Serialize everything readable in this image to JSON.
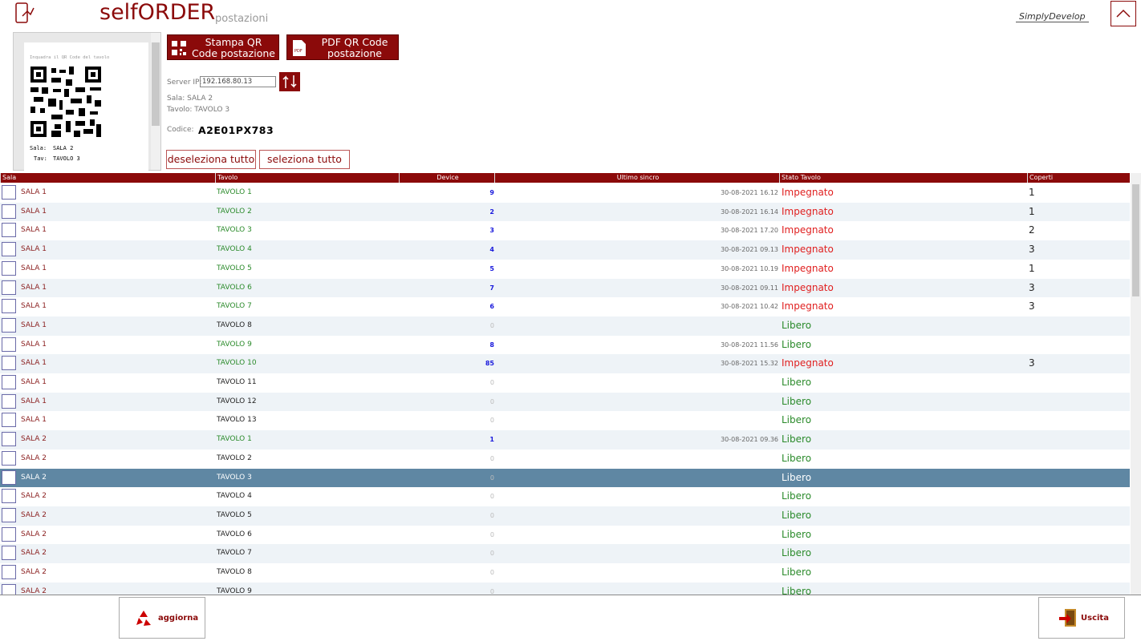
{
  "header": {
    "title": "selfORDER",
    "subtitle": "postazioni",
    "logo": "SimplyDevelop"
  },
  "qr_preview": {
    "hint": "Inquadra il QR Code del tavolo",
    "sala_label": "Sala:",
    "sala": "SALA 2",
    "tav_label": "Tav:",
    "tav": "TAVOLO 3"
  },
  "actions": {
    "print_qr": "Stampa QR Code postazione",
    "pdf_qr": "PDF QR Code postazione",
    "server_ip_label": "Server IP:",
    "server_ip": "192.168.80.13",
    "sala_info": "Sala: SALA 2",
    "tavolo_info": "Tavolo: TAVOLO 3",
    "codice_label": "Codice:",
    "codice": "A2E01PX783",
    "deselect_all": "deseleziona tutto",
    "select_all": "seleziona tutto"
  },
  "table": {
    "columns": [
      "Sala",
      "Tavolo",
      "Device",
      "Ultimo sincro",
      "Stato Tavolo",
      "Coperti"
    ],
    "selected_row": 15,
    "rows": [
      [
        "SALA 1",
        "TAVOLO 1",
        9,
        "30-08-2021 16.12",
        "Impegnato",
        1
      ],
      [
        "SALA 1",
        "TAVOLO 2",
        2,
        "30-08-2021 16.14",
        "Impegnato",
        1
      ],
      [
        "SALA 1",
        "TAVOLO 3",
        3,
        "30-08-2021 17.20",
        "Impegnato",
        2
      ],
      [
        "SALA 1",
        "TAVOLO 4",
        4,
        "30-08-2021 09.13",
        "Impegnato",
        3
      ],
      [
        "SALA 1",
        "TAVOLO 5",
        5,
        "30-08-2021 10.19",
        "Impegnato",
        1
      ],
      [
        "SALA 1",
        "TAVOLO 6",
        7,
        "30-08-2021 09.11",
        "Impegnato",
        3
      ],
      [
        "SALA 1",
        "TAVOLO 7",
        6,
        "30-08-2021 10.42",
        "Impegnato",
        3
      ],
      [
        "SALA 1",
        "TAVOLO 8",
        0,
        null,
        "Libero",
        null
      ],
      [
        "SALA 1",
        "TAVOLO 9",
        8,
        "30-08-2021 11.56",
        "Libero",
        null
      ],
      [
        "SALA 1",
        "TAVOLO 10",
        85,
        "30-08-2021 15.32",
        "Impegnato",
        3
      ],
      [
        "SALA 1",
        "TAVOLO 11",
        0,
        null,
        "Libero",
        null
      ],
      [
        "SALA 1",
        "TAVOLO 12",
        0,
        null,
        "Libero",
        null
      ],
      [
        "SALA 1",
        "TAVOLO 13",
        0,
        null,
        "Libero",
        null
      ],
      [
        "SALA 2",
        "TAVOLO 1",
        1,
        "30-08-2021 09.36",
        "Libero",
        null
      ],
      [
        "SALA 2",
        "TAVOLO 2",
        0,
        null,
        "Libero",
        null
      ],
      [
        "SALA 2",
        "TAVOLO 3",
        0,
        null,
        "Libero",
        null
      ],
      [
        "SALA 2",
        "TAVOLO 4",
        0,
        null,
        "Libero",
        null
      ],
      [
        "SALA 2",
        "TAVOLO 5",
        0,
        null,
        "Libero",
        null
      ],
      [
        "SALA 2",
        "TAVOLO 6",
        0,
        null,
        "Libero",
        null
      ],
      [
        "SALA 2",
        "TAVOLO 7",
        0,
        null,
        "Libero",
        null
      ],
      [
        "SALA 2",
        "TAVOLO 8",
        0,
        null,
        "Libero",
        null
      ],
      [
        "SALA 2",
        "TAVOLO 9",
        0,
        null,
        "Libero",
        null
      ]
    ]
  },
  "footer": {
    "refresh": "aggiorna",
    "exit": "Uscita"
  }
}
